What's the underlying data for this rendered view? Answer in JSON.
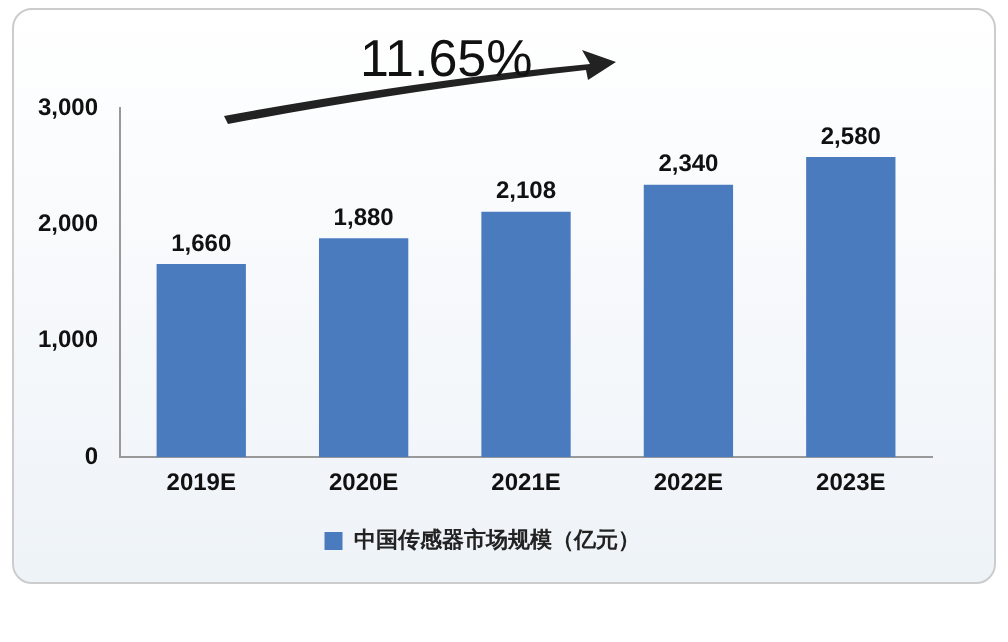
{
  "chart_data": {
    "type": "bar",
    "categories": [
      "2019E",
      "2020E",
      "2021E",
      "2022E",
      "2023E"
    ],
    "series": [
      {
        "name": "中国传感器市场规模（亿元）",
        "color": "#4a7bbf",
        "values": [
          1660,
          1880,
          2108,
          2340,
          2580
        ],
        "value_labels": [
          "1,660",
          "1,880",
          "2,108",
          "2,340",
          "2,580"
        ]
      }
    ],
    "ylim": [
      0,
      3000
    ],
    "yticks": [
      {
        "value": 0,
        "label": "0"
      },
      {
        "value": 1000,
        "label": "1,000"
      },
      {
        "value": 2000,
        "label": "2,000"
      },
      {
        "value": 3000,
        "label": "3,000"
      }
    ],
    "grid": false,
    "legend": "bottom",
    "annotations": [
      "11.65%"
    ]
  }
}
